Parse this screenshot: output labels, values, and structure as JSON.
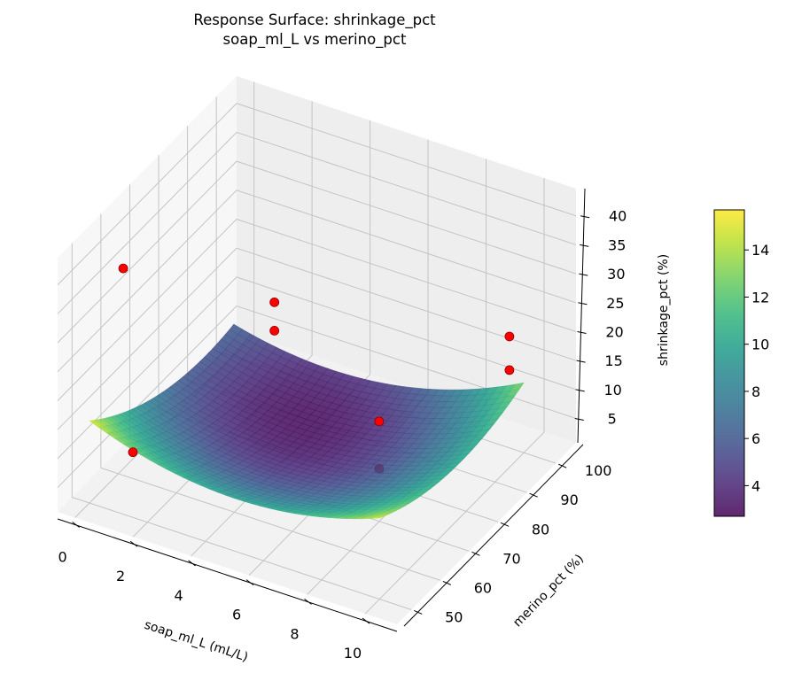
{
  "chart_data": {
    "type": "surface3d",
    "title": "Response Surface: shrinkage_pct",
    "subtitle": "soap_ml_L vs merino_pct",
    "xlabel": "soap_ml_L (mL/L)",
    "ylabel": "merino_pct (%)",
    "zlabel": "shrinkage_pct (%)",
    "xlim": [
      -0.6,
      11.1
    ],
    "ylim": [
      45,
      107
    ],
    "zlim": [
      0.8,
      44.7
    ],
    "xticks": [
      "0",
      "2",
      "4",
      "6",
      "8",
      "10"
    ],
    "yticks": [
      "50",
      "60",
      "70",
      "80",
      "90",
      "100"
    ],
    "zticks": [
      "5",
      "10",
      "15",
      "20",
      "25",
      "30",
      "35",
      "40"
    ],
    "surface": {
      "x_range": [
        0,
        10
      ],
      "y_range": [
        50,
        100
      ],
      "corner_values": {
        "x0_y50": 15.0,
        "x10_y50": 14.8,
        "x0_y100": 6.4,
        "x10_y100": 12.9
      },
      "minimum_approx": 3.7,
      "colormap": "viridis",
      "alpha": 0.85
    },
    "points": [
      {
        "x": 0,
        "y": 61.7,
        "z": 35.4
      },
      {
        "x": 1.4,
        "y": 100,
        "z": 12.5
      },
      {
        "x": 1.4,
        "y": 100,
        "z": 7.6
      },
      {
        "x": 10,
        "y": 95,
        "z": 23.4
      },
      {
        "x": 10,
        "y": 95,
        "z": 17.6
      },
      {
        "x": 7.5,
        "y": 75,
        "z": 14.7
      },
      {
        "x": 7.5,
        "y": 75,
        "z": 6.5
      },
      {
        "x": 1,
        "y": 55,
        "z": 8.7
      }
    ],
    "point_color": "#ff0000",
    "colorbar": {
      "range": [
        2.7,
        15.7
      ],
      "ticks": [
        "4",
        "6",
        "8",
        "10",
        "12",
        "14"
      ]
    },
    "grid": true
  }
}
